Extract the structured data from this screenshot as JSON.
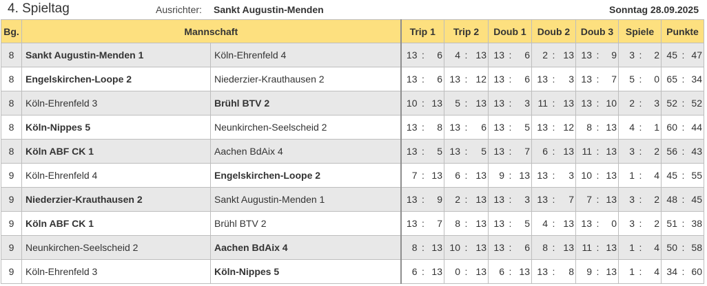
{
  "header": {
    "title": "4. Spieltag",
    "ausrichter_label": "Ausrichter:",
    "ausrichter": "Sankt Augustin-Menden",
    "date": "Sonntag 28.09.2025"
  },
  "columns": {
    "bg": "Bg.",
    "team": "Mannschaft",
    "trip1": "Trip 1",
    "trip2": "Trip 2",
    "doub1": "Doub 1",
    "doub2": "Doub 2",
    "doub3": "Doub 3",
    "spiele": "Spiele",
    "punkte": "Punkte"
  },
  "colors": {
    "header_bg": "#fde07f",
    "alt_row_bg": "#e8e8e8"
  },
  "rows": [
    {
      "bg": "8",
      "home": "Sankt Augustin-Menden 1",
      "away": "Köln-Ehrenfeld 4",
      "winner": "home",
      "trip1": [
        "13",
        "6"
      ],
      "trip2": [
        "4",
        "13"
      ],
      "doub1": [
        "13",
        "6"
      ],
      "doub2": [
        "2",
        "13"
      ],
      "doub3": [
        "13",
        "9"
      ],
      "spiele": [
        "3",
        "2"
      ],
      "punkte": [
        "45",
        "47"
      ]
    },
    {
      "bg": "8",
      "home": "Engelskirchen-Loope 2",
      "away": "Niederzier-Krauthausen 2",
      "winner": "home",
      "trip1": [
        "13",
        "6"
      ],
      "trip2": [
        "13",
        "12"
      ],
      "doub1": [
        "13",
        "6"
      ],
      "doub2": [
        "13",
        "3"
      ],
      "doub3": [
        "13",
        "7"
      ],
      "spiele": [
        "5",
        "0"
      ],
      "punkte": [
        "65",
        "34"
      ]
    },
    {
      "bg": "8",
      "home": "Köln-Ehrenfeld 3",
      "away": "Brühl BTV 2",
      "winner": "away",
      "trip1": [
        "10",
        "13"
      ],
      "trip2": [
        "5",
        "13"
      ],
      "doub1": [
        "13",
        "3"
      ],
      "doub2": [
        "11",
        "13"
      ],
      "doub3": [
        "13",
        "10"
      ],
      "spiele": [
        "2",
        "3"
      ],
      "punkte": [
        "52",
        "52"
      ]
    },
    {
      "bg": "8",
      "home": "Köln-Nippes 5",
      "away": "Neunkirchen-Seelscheid 2",
      "winner": "home",
      "trip1": [
        "13",
        "8"
      ],
      "trip2": [
        "13",
        "6"
      ],
      "doub1": [
        "13",
        "5"
      ],
      "doub2": [
        "13",
        "12"
      ],
      "doub3": [
        "8",
        "13"
      ],
      "spiele": [
        "4",
        "1"
      ],
      "punkte": [
        "60",
        "44"
      ]
    },
    {
      "bg": "8",
      "home": "Köln ABF CK 1",
      "away": "Aachen BdAix 4",
      "winner": "home",
      "trip1": [
        "13",
        "5"
      ],
      "trip2": [
        "13",
        "5"
      ],
      "doub1": [
        "13",
        "7"
      ],
      "doub2": [
        "6",
        "13"
      ],
      "doub3": [
        "11",
        "13"
      ],
      "spiele": [
        "3",
        "2"
      ],
      "punkte": [
        "56",
        "43"
      ]
    },
    {
      "bg": "9",
      "home": "Köln-Ehrenfeld 4",
      "away": "Engelskirchen-Loope 2",
      "winner": "away",
      "trip1": [
        "7",
        "13"
      ],
      "trip2": [
        "6",
        "13"
      ],
      "doub1": [
        "9",
        "13"
      ],
      "doub2": [
        "13",
        "3"
      ],
      "doub3": [
        "10",
        "13"
      ],
      "spiele": [
        "1",
        "4"
      ],
      "punkte": [
        "45",
        "55"
      ]
    },
    {
      "bg": "9",
      "home": "Niederzier-Krauthausen 2",
      "away": "Sankt Augustin-Menden 1",
      "winner": "home",
      "trip1": [
        "13",
        "9"
      ],
      "trip2": [
        "2",
        "13"
      ],
      "doub1": [
        "13",
        "3"
      ],
      "doub2": [
        "13",
        "7"
      ],
      "doub3": [
        "7",
        "13"
      ],
      "spiele": [
        "3",
        "2"
      ],
      "punkte": [
        "48",
        "45"
      ]
    },
    {
      "bg": "9",
      "home": "Köln ABF CK 1",
      "away": "Brühl BTV 2",
      "winner": "home",
      "trip1": [
        "13",
        "7"
      ],
      "trip2": [
        "8",
        "13"
      ],
      "doub1": [
        "13",
        "5"
      ],
      "doub2": [
        "4",
        "13"
      ],
      "doub3": [
        "13",
        "0"
      ],
      "spiele": [
        "3",
        "2"
      ],
      "punkte": [
        "51",
        "38"
      ]
    },
    {
      "bg": "9",
      "home": "Neunkirchen-Seelscheid 2",
      "away": "Aachen BdAix 4",
      "winner": "away",
      "trip1": [
        "8",
        "13"
      ],
      "trip2": [
        "10",
        "13"
      ],
      "doub1": [
        "13",
        "6"
      ],
      "doub2": [
        "8",
        "13"
      ],
      "doub3": [
        "11",
        "13"
      ],
      "spiele": [
        "1",
        "4"
      ],
      "punkte": [
        "50",
        "58"
      ]
    },
    {
      "bg": "9",
      "home": "Köln-Ehrenfeld 3",
      "away": "Köln-Nippes 5",
      "winner": "away",
      "trip1": [
        "6",
        "13"
      ],
      "trip2": [
        "0",
        "13"
      ],
      "doub1": [
        "6",
        "13"
      ],
      "doub2": [
        "13",
        "8"
      ],
      "doub3": [
        "9",
        "13"
      ],
      "spiele": [
        "1",
        "4"
      ],
      "punkte": [
        "34",
        "60"
      ]
    }
  ]
}
